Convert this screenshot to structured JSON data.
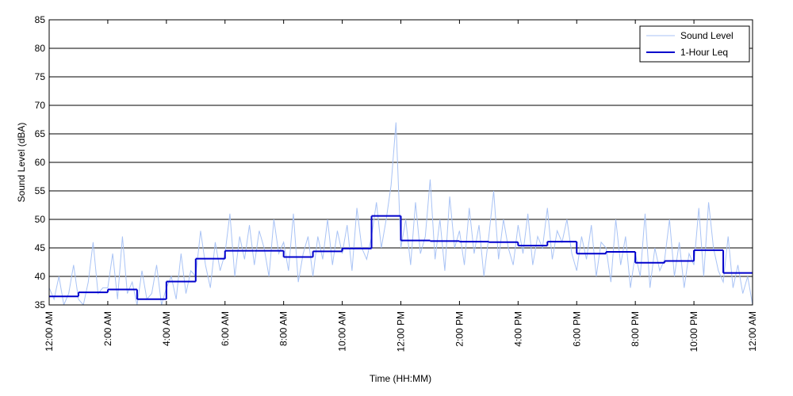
{
  "chart_data": {
    "type": "line",
    "xlabel": "Time (HH:MM)",
    "ylabel": "Sound Level (dBA)",
    "xlim": [
      0,
      1440
    ],
    "xticks": [
      {
        "value": 0,
        "label": "12:00 AM"
      },
      {
        "value": 120,
        "label": "2:00 AM"
      },
      {
        "value": 240,
        "label": "4:00 AM"
      },
      {
        "value": 360,
        "label": "6:00 AM"
      },
      {
        "value": 480,
        "label": "8:00 AM"
      },
      {
        "value": 600,
        "label": "10:00 AM"
      },
      {
        "value": 720,
        "label": "12:00 PM"
      },
      {
        "value": 840,
        "label": "2:00 PM"
      },
      {
        "value": 960,
        "label": "4:00 PM"
      },
      {
        "value": 1080,
        "label": "6:00 PM"
      },
      {
        "value": 1200,
        "label": "8:00 PM"
      },
      {
        "value": 1320,
        "label": "10:00 PM"
      },
      {
        "value": 1440,
        "label": "12:00 AM"
      }
    ],
    "ylim": [
      35,
      85
    ],
    "yticks": [
      35,
      40,
      45,
      50,
      55,
      60,
      65,
      70,
      75,
      80,
      85
    ],
    "grid": true,
    "legend": "upper right",
    "series": [
      {
        "name": "Sound Level",
        "color": "#a9c3f5",
        "style": "line",
        "x": [
          0,
          10,
          20,
          30,
          40,
          50,
          60,
          70,
          80,
          90,
          100,
          110,
          120,
          130,
          140,
          150,
          160,
          170,
          180,
          190,
          200,
          210,
          220,
          230,
          240,
          250,
          260,
          270,
          280,
          290,
          300,
          310,
          320,
          330,
          340,
          350,
          360,
          370,
          380,
          390,
          400,
          410,
          420,
          430,
          440,
          450,
          460,
          470,
          480,
          490,
          500,
          510,
          520,
          530,
          540,
          550,
          560,
          570,
          580,
          590,
          600,
          610,
          620,
          630,
          640,
          650,
          660,
          670,
          680,
          690,
          700,
          710,
          720,
          730,
          740,
          750,
          760,
          770,
          780,
          790,
          800,
          810,
          820,
          830,
          840,
          850,
          860,
          870,
          880,
          890,
          900,
          910,
          920,
          930,
          940,
          950,
          960,
          970,
          980,
          990,
          1000,
          1010,
          1020,
          1030,
          1040,
          1050,
          1060,
          1070,
          1080,
          1090,
          1100,
          1110,
          1120,
          1130,
          1140,
          1150,
          1160,
          1170,
          1180,
          1190,
          1200,
          1210,
          1220,
          1230,
          1240,
          1250,
          1260,
          1270,
          1280,
          1290,
          1300,
          1310,
          1320,
          1330,
          1340,
          1350,
          1360,
          1370,
          1380,
          1390,
          1400,
          1410,
          1420,
          1430,
          1440
        ],
        "values": [
          38,
          36,
          40,
          35,
          37,
          42,
          36,
          35,
          39,
          46,
          37,
          38,
          38,
          44,
          36,
          47,
          37,
          39,
          35,
          41,
          36,
          37,
          42,
          35,
          38,
          40,
          36,
          44,
          37,
          41,
          40,
          48,
          42,
          38,
          46,
          41,
          44,
          51,
          40,
          47,
          43,
          49,
          42,
          48,
          45,
          40,
          50,
          44,
          46,
          41,
          51,
          39,
          44,
          47,
          40,
          47,
          43,
          50,
          42,
          48,
          44,
          49,
          41,
          52,
          45,
          43,
          47,
          53,
          45,
          50,
          56,
          67,
          45,
          50,
          42,
          53,
          44,
          47,
          57,
          43,
          50,
          41,
          54,
          45,
          48,
          42,
          52,
          44,
          49,
          40,
          47,
          55,
          43,
          50,
          45,
          42,
          49,
          44,
          51,
          42,
          47,
          45,
          52,
          43,
          48,
          46,
          50,
          44,
          41,
          47,
          43,
          49,
          40,
          46,
          45,
          39,
          50,
          42,
          47,
          38,
          44,
          40,
          51,
          38,
          45,
          41,
          43,
          50,
          40,
          46,
          38,
          44,
          42,
          52,
          40,
          53,
          45,
          41,
          39,
          47,
          38,
          42,
          37,
          40,
          35
        ]
      },
      {
        "name": "1-Hour Leq",
        "color": "#0000cc",
        "style": "step",
        "x": [
          0,
          60,
          120,
          180,
          240,
          300,
          360,
          420,
          480,
          540,
          600,
          660,
          720,
          780,
          840,
          900,
          960,
          1020,
          1080,
          1140,
          1200,
          1260,
          1320,
          1380
        ],
        "values": [
          36.5,
          37.2,
          37.7,
          36,
          39.1,
          43.1,
          44.5,
          44.5,
          43.4,
          44.4,
          44.9,
          50.6,
          46.3,
          46.2,
          46.1,
          46,
          45.4,
          46.1,
          44,
          44.3,
          42.4,
          42.7,
          44.6,
          40.6
        ]
      }
    ]
  }
}
